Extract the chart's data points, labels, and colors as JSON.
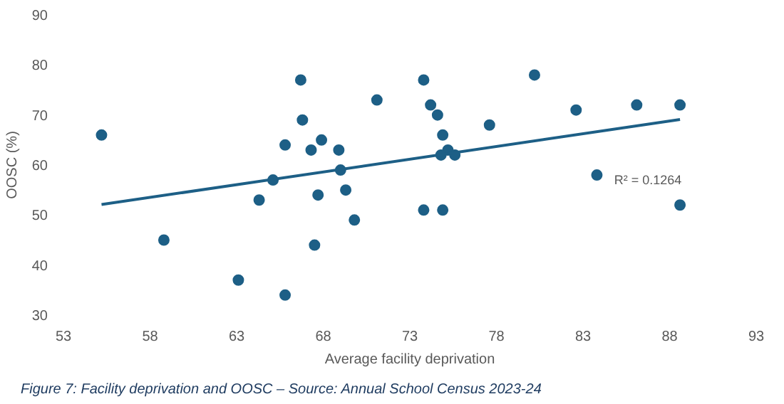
{
  "chart_data": {
    "type": "scatter",
    "xlabel": "Average facility deprivation",
    "ylabel": "OOSC (%)",
    "xlim": [
      53,
      93
    ],
    "xticks": [
      53,
      58,
      63,
      68,
      73,
      78,
      83,
      88,
      93
    ],
    "ylim": [
      30,
      90
    ],
    "yticks": [
      30,
      40,
      50,
      60,
      70,
      80,
      90
    ],
    "grid": false,
    "series": [
      {
        "color": "#1d5f86",
        "marker": "circle",
        "x": [
          55.2,
          58.8,
          63.1,
          64.3,
          65.1,
          65.8,
          65.8,
          66.7,
          66.8,
          67.3,
          67.5,
          67.7,
          67.9,
          68.9,
          69.0,
          69.3,
          69.8,
          71.1,
          73.8,
          74.2,
          74.6,
          74.9,
          75.2,
          74.8,
          75.6,
          73.8,
          74.9,
          77.6,
          80.2,
          82.6,
          83.8,
          86.1,
          88.6,
          88.6
        ],
        "values": [
          66,
          45,
          37,
          53,
          57,
          64,
          34,
          77,
          69,
          63,
          44,
          54,
          65,
          63,
          59,
          55,
          49,
          73,
          77,
          72,
          70,
          66,
          63,
          62,
          62,
          51,
          51,
          68,
          78,
          71,
          58,
          72,
          72,
          52
        ]
      },
      {
        "type": "line",
        "color": "#1d5f86",
        "x": [
          55.2,
          88.6
        ],
        "values": [
          52.1,
          69.1
        ]
      }
    ],
    "annotations": [
      "R² = 0.1264",
      "Figure 7: Facility deprivation and OOSC – Source: Annual School Census 2023-24"
    ]
  }
}
